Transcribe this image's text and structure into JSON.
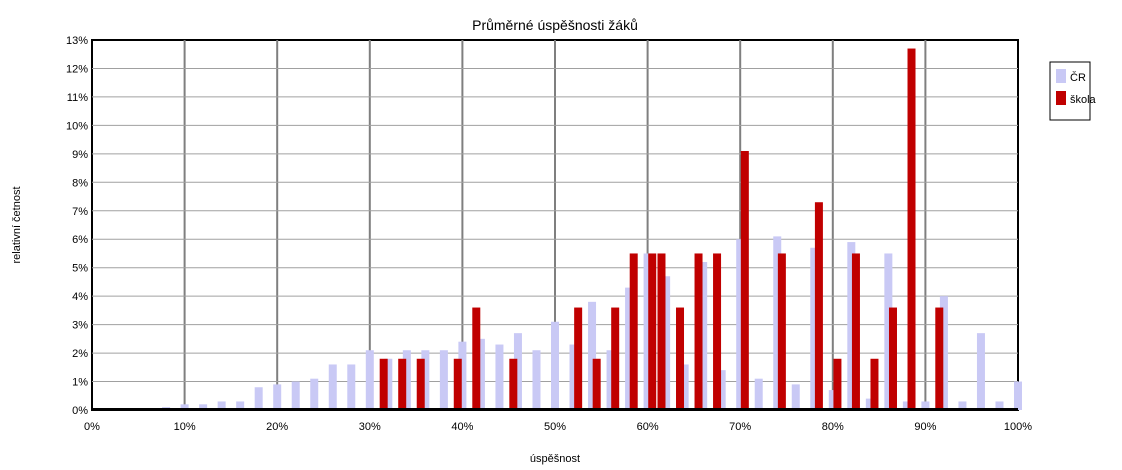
{
  "chart_data": {
    "type": "bar",
    "title": "Průměrné úspěšnosti žáků",
    "xlabel": "úspěšnost",
    "ylabel": "relativní četnost",
    "x_ticks": [
      "0%",
      "10%",
      "20%",
      "30%",
      "40%",
      "50%",
      "60%",
      "70%",
      "80%",
      "90%",
      "100%"
    ],
    "y_ticks": [
      "0%",
      "1%",
      "2%",
      "3%",
      "4%",
      "5%",
      "6%",
      "7%",
      "8%",
      "9%",
      "10%",
      "11%",
      "12%",
      "13%"
    ],
    "xlim": [
      0,
      100
    ],
    "ylim": [
      0,
      13
    ],
    "grid": true,
    "legend_position": "top-right",
    "colors": {
      "CR": "#c9c9f5",
      "skola": "#c00000"
    },
    "series": [
      {
        "name": "ČR",
        "x": [
          8,
          10,
          12,
          14,
          16,
          18,
          20,
          22,
          24,
          26,
          28,
          30,
          32,
          34,
          36,
          38,
          40,
          42,
          44,
          46,
          48,
          50,
          52,
          54,
          56,
          58,
          60,
          62,
          64,
          66,
          68,
          70,
          72,
          74,
          76,
          78,
          80,
          82,
          84,
          86,
          88,
          90,
          92,
          94,
          96,
          98,
          100
        ],
        "values": [
          0.1,
          0.2,
          0.2,
          0.3,
          0.3,
          0.8,
          0.9,
          1.0,
          1.1,
          1.6,
          1.6,
          2.1,
          1.8,
          2.1,
          2.1,
          2.1,
          2.4,
          2.5,
          2.3,
          2.7,
          2.1,
          3.1,
          2.3,
          3.8,
          2.1,
          4.3,
          5.5,
          4.7,
          1.6,
          5.2,
          1.4,
          6.0,
          1.1,
          6.1,
          0.9,
          5.7,
          0.7,
          5.9,
          0.4,
          5.5,
          0.3,
          0.3,
          4.0,
          0.3,
          2.7,
          0.3,
          1.0
        ]
      },
      {
        "name": "škola",
        "x": [
          31.5,
          33.5,
          35.5,
          39.5,
          41.5,
          45.5,
          52.5,
          54.5,
          56.5,
          58.5,
          60.5,
          61.5,
          63.5,
          65.5,
          67.5,
          70.5,
          74.5,
          78.5,
          80.5,
          82.5,
          84.5,
          86.5,
          88.5,
          91.5,
          95.5
        ],
        "values": [
          1.8,
          1.8,
          1.8,
          1.8,
          3.6,
          1.8,
          3.6,
          1.8,
          3.6,
          5.5,
          5.5,
          5.5,
          3.6,
          5.5,
          5.5,
          9.1,
          5.5,
          7.3,
          1.8,
          5.5,
          1.8,
          3.6,
          12.7,
          3.6,
          0.0
        ]
      }
    ]
  }
}
